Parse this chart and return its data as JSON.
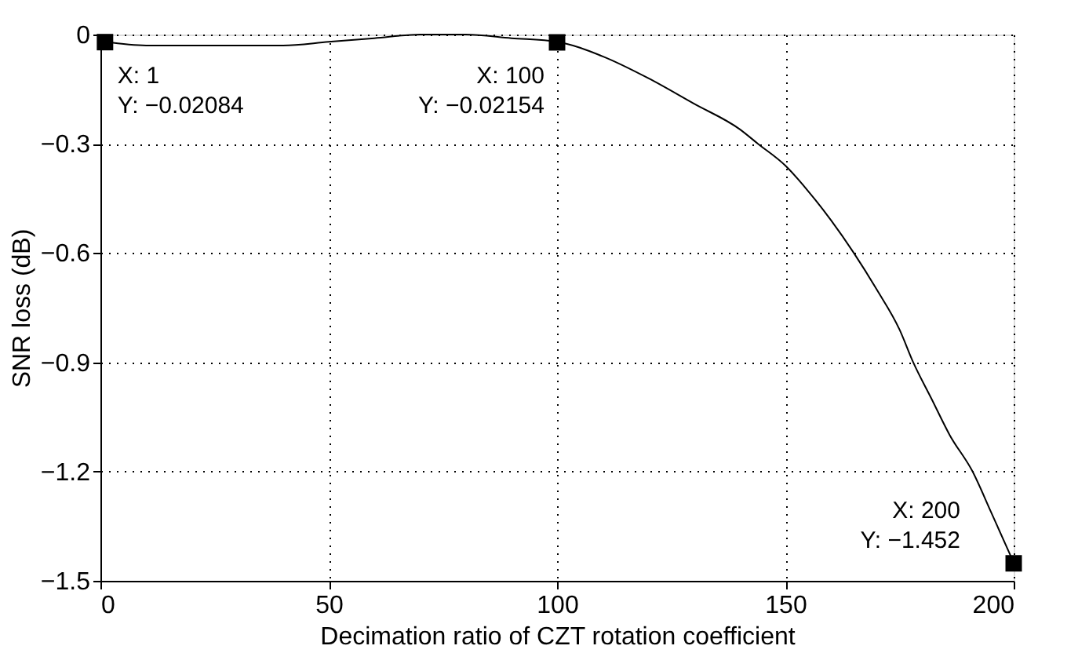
{
  "chart_data": {
    "type": "line",
    "xlabel": "Decimation ratio of CZT rotation coefficient",
    "ylabel": "SNR loss (dB)",
    "x": [
      1,
      10,
      20,
      30,
      40,
      50,
      60,
      70,
      80,
      90,
      100,
      110,
      120,
      130,
      140,
      144,
      150,
      155,
      160,
      165,
      170,
      175,
      178,
      182,
      186,
      191,
      195,
      200
    ],
    "series": [
      {
        "color": "#000000",
        "values": [
          -0.02,
          -0.03,
          -0.03,
          -0.03,
          -0.03,
          -0.02,
          -0.01,
          0.0,
          0.0,
          -0.01,
          -0.02,
          -0.06,
          -0.12,
          -0.19,
          -0.26,
          -0.3,
          -0.36,
          -0.43,
          -0.51,
          -0.6,
          -0.7,
          -0.81,
          -0.9,
          -1.0,
          -1.1,
          -1.2,
          -1.31,
          -1.45
        ]
      }
    ],
    "xlim": [
      0,
      200
    ],
    "xticks": [
      0,
      50,
      100,
      150,
      200
    ],
    "ylim": [
      -1.5,
      0
    ],
    "yticks": [
      -1.5,
      -1.2,
      -0.9,
      -0.6,
      -0.3,
      0
    ],
    "grid": true,
    "line_style": "solid",
    "marker": "none",
    "annotations": [
      {
        "text": "X: 1\nY: −0.02084",
        "x": 1,
        "y": -0.02084
      },
      {
        "text": "X: 100\nY: −0.02154",
        "x": 100,
        "y": -0.02154
      },
      {
        "text": "X: 200\nY: −1.452",
        "x": 200,
        "y": -1.452
      }
    ]
  }
}
